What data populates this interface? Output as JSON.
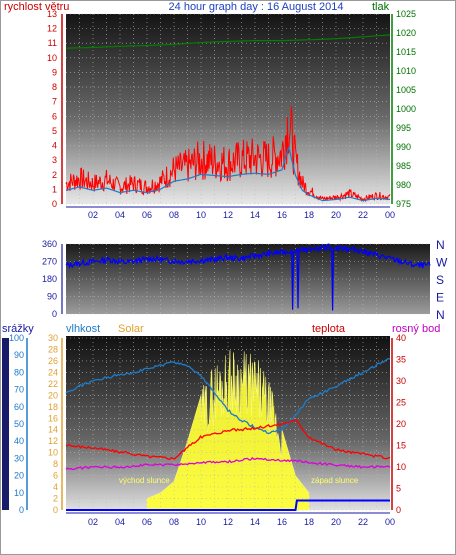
{
  "header": {
    "title": "24 hour graph day : 16 August 2014",
    "left_label": "rychlost větru",
    "right_label": "tlak"
  },
  "x_ticks": [
    "02",
    "04",
    "06",
    "08",
    "10",
    "12",
    "14",
    "16",
    "18",
    "20",
    "22",
    "00"
  ],
  "wind_panel": {
    "wind_ticks": [
      "0",
      "1",
      "2",
      "3",
      "4",
      "5",
      "6",
      "7",
      "8",
      "9",
      "10",
      "11",
      "12",
      "13"
    ],
    "pressure_ticks": [
      "975",
      "980",
      "985",
      "990",
      "995",
      "1000",
      "1005",
      "1010",
      "1015",
      "1020",
      "1025"
    ],
    "colors": {
      "gust": "#ff0000",
      "speed": "#1e7bc8",
      "pressure": "#008000"
    }
  },
  "direction_panel": {
    "deg_ticks": [
      "0",
      "90",
      "180",
      "270",
      "360"
    ],
    "compass": [
      "N",
      "W",
      "S",
      "E",
      "N"
    ],
    "colors": {
      "direction": "#0000ff"
    }
  },
  "weather_panel": {
    "labels": {
      "rain": "srážky",
      "humidity": "vlhkost",
      "solar": "Solar",
      "temperature": "teplota",
      "dewpoint": "rosný bod"
    },
    "humidity_ticks": [
      "0",
      "10",
      "20",
      "30",
      "40",
      "50",
      "60",
      "70",
      "80",
      "90",
      "100"
    ],
    "temp_ticks": [
      "0",
      "2",
      "4",
      "6",
      "8",
      "10",
      "12",
      "14",
      "16",
      "18",
      "20",
      "22",
      "24",
      "26",
      "28",
      "30"
    ],
    "right_ticks": [
      "0",
      "5",
      "10",
      "15",
      "20",
      "25",
      "30",
      "35",
      "40"
    ],
    "annotations": {
      "sunrise": "východ slunce",
      "sunset": "západ slunce"
    },
    "colors": {
      "humidity": "#1e7bc8",
      "temperature": "#ff0000",
      "dewpoint": "#dd00dd",
      "rain": "#0000ff",
      "solar": "#ffff33"
    }
  },
  "chart_data": [
    {
      "type": "line",
      "x_unit": "hour",
      "xlim": [
        0,
        24
      ],
      "ylim": [
        0,
        13
      ],
      "y2lim": [
        975,
        1025
      ],
      "series": [
        {
          "name": "rychlost větru",
          "axis": "left",
          "x": [
            0,
            1,
            2,
            3,
            4,
            5,
            6,
            7,
            8,
            9,
            10,
            11,
            12,
            13,
            14,
            15,
            16,
            16.5,
            17,
            17.5,
            18,
            19,
            20,
            21,
            22,
            23,
            24
          ],
          "values": [
            1.2,
            1.5,
            1.2,
            1.4,
            1.0,
            1.2,
            1.0,
            1.3,
            2.0,
            2.2,
            2.6,
            2.5,
            2.4,
            2.6,
            2.7,
            2.6,
            3.0,
            5.0,
            2.5,
            1.2,
            0.8,
            0.3,
            0.4,
            0.6,
            0.3,
            0.5,
            0.4
          ]
        },
        {
          "name": "tlak",
          "axis": "right",
          "x": [
            0,
            2,
            4,
            6,
            8,
            10,
            12,
            14,
            16,
            18,
            20,
            22,
            24
          ],
          "values": [
            1016,
            1016.2,
            1016.5,
            1016.7,
            1017,
            1017.5,
            1017.8,
            1018,
            1018,
            1018.2,
            1018.5,
            1019,
            1019.5
          ]
        }
      ]
    },
    {
      "type": "line",
      "x_unit": "hour",
      "xlim": [
        0,
        24
      ],
      "ylim": [
        0,
        360
      ],
      "series": [
        {
          "name": "direction",
          "x": [
            0,
            1,
            2,
            3,
            4,
            5,
            6,
            7,
            8,
            9,
            10,
            11,
            12,
            13,
            14,
            15,
            16,
            17,
            18,
            19,
            20,
            21,
            22,
            23,
            24
          ],
          "values": [
            250,
            262,
            270,
            280,
            265,
            275,
            285,
            275,
            270,
            275,
            278,
            290,
            285,
            300,
            310,
            320,
            330,
            330,
            345,
            340,
            330,
            310,
            290,
            270,
            250
          ]
        }
      ]
    },
    {
      "type": "line",
      "x_unit": "hour",
      "xlim": [
        0,
        24
      ],
      "ylim": [
        0,
        100
      ],
      "series": [
        {
          "name": "vlhkost",
          "axis": "left",
          "x": [
            0,
            1,
            2,
            3,
            4,
            5,
            6,
            7,
            8,
            9,
            10,
            11,
            12,
            13,
            14,
            15,
            16,
            17,
            18,
            19,
            20,
            21,
            22,
            23,
            24
          ],
          "values": [
            68,
            72,
            75,
            77,
            79,
            80,
            82,
            84,
            86,
            84,
            78,
            68,
            58,
            52,
            48,
            45,
            47,
            55,
            65,
            68,
            72,
            76,
            80,
            84,
            88
          ]
        },
        {
          "name": "teplota",
          "axis": "right",
          "x": [
            0,
            2,
            4,
            6,
            8,
            10,
            12,
            14,
            16,
            17,
            18,
            20,
            22,
            24
          ],
          "values": [
            15,
            14.5,
            13.5,
            12.5,
            12,
            17,
            18.5,
            19,
            20,
            21,
            17,
            14,
            13,
            12
          ]
        },
        {
          "name": "rosný bod",
          "axis": "right",
          "x": [
            0,
            2,
            4,
            6,
            8,
            10,
            12,
            14,
            16,
            17,
            18,
            20,
            22,
            24
          ],
          "values": [
            9.5,
            10,
            10,
            10.5,
            10.5,
            11,
            11.2,
            12,
            11.5,
            11.5,
            11,
            10.5,
            10,
            10
          ]
        },
        {
          "name": "srážky",
          "axis": "right",
          "x": [
            0,
            17,
            17.1,
            24
          ],
          "values": [
            0,
            0,
            2.2,
            2.2
          ]
        },
        {
          "name": "Solar",
          "axis": "temp",
          "x": [
            6,
            7,
            8,
            9,
            10,
            11,
            12,
            13,
            14,
            15,
            16,
            17,
            18
          ],
          "values": [
            2,
            3,
            5,
            12,
            20,
            25,
            27,
            27,
            26,
            22,
            14,
            6,
            3
          ]
        }
      ]
    }
  ]
}
